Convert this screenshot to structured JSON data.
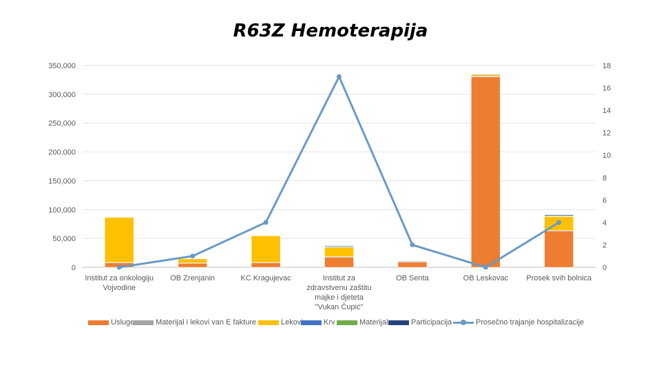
{
  "chart_data": {
    "type": "bar",
    "title": "R63Z Hemoterapija",
    "categories": [
      [
        "Institut za onkologiju",
        "Vojvodine"
      ],
      [
        "OB Zrenjanin"
      ],
      [
        "KC Kragujevac"
      ],
      [
        "Institut za",
        "zdravstvenu zaštitu",
        "majke i djeteta",
        "\"Vukan Čupić\""
      ],
      [
        "OB Senta"
      ],
      [
        "OB Leskovac"
      ],
      [
        "Prosek svih bolnica"
      ]
    ],
    "y_left": {
      "min": 0,
      "max": 350000,
      "ticks": [
        "0",
        "50,000",
        "100,000",
        "150,000",
        "200,000",
        "250,000",
        "300,000",
        "350,000"
      ]
    },
    "y_right": {
      "min": 0,
      "max": 18,
      "ticks": [
        "0",
        "2",
        "4",
        "6",
        "8",
        "10",
        "12",
        "14",
        "16",
        "18"
      ]
    },
    "grid": true,
    "legend_position": "bottom",
    "series": [
      {
        "name": "Usluge",
        "color": "#ed7d31",
        "axis": "left",
        "values": [
          8000,
          7000,
          8000,
          17000,
          9000,
          330000,
          63000
        ]
      },
      {
        "name": "Materijal i lekovi van E fakture",
        "color": "#a5a5a5",
        "axis": "left",
        "values": [
          500,
          500,
          500,
          1500,
          1000,
          1000,
          1000
        ]
      },
      {
        "name": "Lekovi",
        "color": "#ffc000",
        "axis": "left",
        "values": [
          78000,
          7000,
          46000,
          16000,
          0,
          3000,
          24000
        ]
      },
      {
        "name": "Krv",
        "color": "#4472c4",
        "axis": "left",
        "values": [
          0,
          0,
          0,
          1500,
          0,
          0,
          1000
        ]
      },
      {
        "name": "Materijal",
        "color": "#70ad47",
        "axis": "left",
        "values": [
          0,
          0,
          0,
          500,
          0,
          0,
          500
        ]
      },
      {
        "name": "Participacija",
        "color": "#264478",
        "axis": "left",
        "values": [
          0,
          0,
          0,
          1000,
          500,
          500,
          1500
        ]
      }
    ],
    "line_series": [
      {
        "name": "Prosečno trajanje hospitalizacije",
        "color": "#6a9ac6",
        "axis": "right",
        "values": [
          0,
          1,
          4,
          17,
          2,
          0,
          4
        ]
      }
    ]
  }
}
